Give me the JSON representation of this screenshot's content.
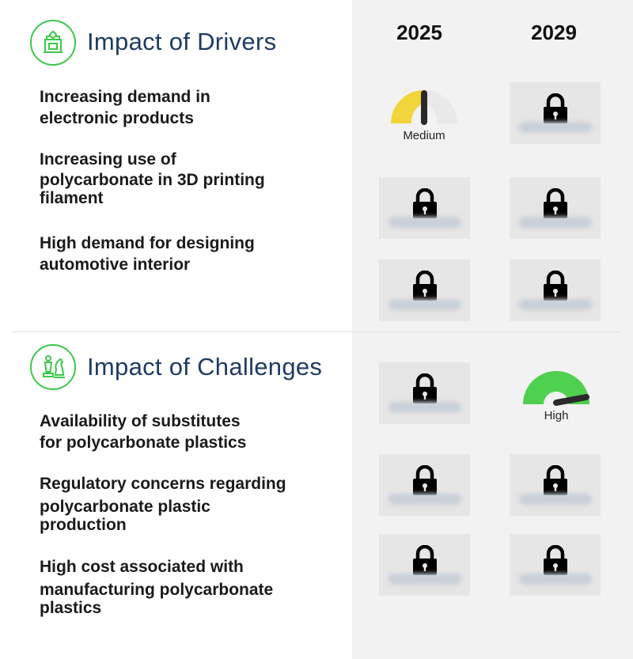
{
  "years": [
    "2025",
    "2029"
  ],
  "drivers": {
    "title": "Impact of Drivers",
    "items": [
      {
        "lines": [
          "Increasing demand in",
          "electronic products"
        ],
        "impact_2025": {
          "locked": false,
          "level": "Medium"
        },
        "impact_2029": {
          "locked": true
        }
      },
      {
        "lines": [
          "Increasing use of",
          "polycarbonate in 3D printing",
          "filament"
        ],
        "impact_2025": {
          "locked": true
        },
        "impact_2029": {
          "locked": true
        }
      },
      {
        "lines": [
          "High demand for designing",
          "automotive interior"
        ],
        "impact_2025": {
          "locked": true
        },
        "impact_2029": {
          "locked": true
        }
      }
    ]
  },
  "challenges": {
    "title": "Impact of Challenges",
    "items": [
      {
        "lines": [
          "Availability of substitutes",
          "for polycarbonate plastics"
        ],
        "impact_2025": {
          "locked": true
        },
        "impact_2029": {
          "locked": false,
          "level": "High"
        }
      },
      {
        "lines": [
          "Regulatory concerns regarding",
          "polycarbonate plastic",
          "production"
        ],
        "impact_2025": {
          "locked": true
        },
        "impact_2029": {
          "locked": true
        }
      },
      {
        "lines": [
          "High cost associated with",
          "manufacturing polycarbonate",
          "plastics"
        ],
        "impact_2025": {
          "locked": true
        },
        "impact_2029": {
          "locked": true
        }
      }
    ]
  },
  "colors": {
    "accent_green": "#3cc84a",
    "title_blue": "#1f3b63",
    "medium_yellow": "#f1d53b",
    "high_green": "#4fd04f"
  },
  "icons": {
    "drivers": "machine-gear-icon",
    "challenges": "chess-pieces-icon",
    "lock": "padlock-icon"
  }
}
